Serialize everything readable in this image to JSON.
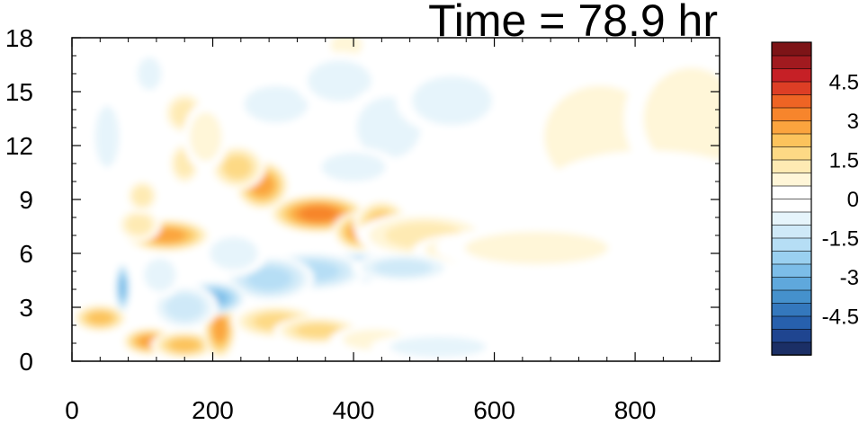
{
  "chart_data": {
    "type": "heatmap",
    "title": "Time = 78.9 hr",
    "xlabel": "",
    "ylabel": "",
    "xlim": [
      0,
      920
    ],
    "ylim": [
      0,
      18
    ],
    "x_ticks": [
      0,
      200,
      400,
      600,
      800
    ],
    "x_tick_labels": [
      "0",
      "200",
      "400",
      "600",
      "800"
    ],
    "y_ticks": [
      0,
      3,
      6,
      9,
      12,
      15,
      18
    ],
    "y_tick_labels": [
      "0",
      "3",
      "6",
      "9",
      "12",
      "15",
      "18"
    ],
    "colorbar": {
      "min": -6,
      "max": 6,
      "step": 0.5,
      "levels": [
        -5.5,
        -5,
        -4.5,
        -4,
        -3.5,
        -3,
        -2.5,
        -2,
        -1.5,
        -1,
        -0.5,
        0,
        0.5,
        1,
        1.5,
        2,
        2.5,
        3,
        3.5,
        4,
        4.5,
        5,
        5.5
      ],
      "labeled_values": [
        4.5,
        3,
        1.5,
        0,
        -1.5,
        -3,
        -4.5
      ],
      "labels": [
        "4.5",
        "3",
        "1.5",
        "0",
        "-1.5",
        "-3",
        "-4.5"
      ],
      "colors": [
        "#1b2f66",
        "#1f4590",
        "#2760ad",
        "#3478bd",
        "#4591cc",
        "#5fa8dc",
        "#7cbde8",
        "#9ad0f0",
        "#b6def5",
        "#cfe9f8",
        "#e6f4fb",
        "#ffffff",
        "#ffffff",
        "#fff6d8",
        "#feeab3",
        "#fdd985",
        "#fcc35c",
        "#fba43e",
        "#f7852c",
        "#ee6424",
        "#dd3e25",
        "#c62026",
        "#a11a1f",
        "#7d1417"
      ]
    },
    "features": [
      {
        "x": 350,
        "y": 8.2,
        "value": 3.5,
        "sx": 45,
        "sy": 0.7
      },
      {
        "x": 410,
        "y": 7.2,
        "value": 3.0,
        "sx": 25,
        "sy": 0.7
      },
      {
        "x": 440,
        "y": 7.6,
        "value": 2.2,
        "sx": 25,
        "sy": 0.9
      },
      {
        "x": 270,
        "y": 9.8,
        "value": 2.8,
        "sx": 25,
        "sy": 0.9
      },
      {
        "x": 235,
        "y": 10.8,
        "value": 2.0,
        "sx": 25,
        "sy": 0.8
      },
      {
        "x": 135,
        "y": 7.0,
        "value": 2.6,
        "sx": 40,
        "sy": 0.6
      },
      {
        "x": 95,
        "y": 7.6,
        "value": 1.4,
        "sx": 20,
        "sy": 0.6
      },
      {
        "x": 500,
        "y": 7.0,
        "value": 1.3,
        "sx": 60,
        "sy": 0.8
      },
      {
        "x": 580,
        "y": 6.2,
        "value": 1.1,
        "sx": 60,
        "sy": 0.6
      },
      {
        "x": 660,
        "y": 6.3,
        "value": 0.6,
        "sx": 90,
        "sy": 0.8
      },
      {
        "x": 110,
        "y": 1.1,
        "value": 2.8,
        "sx": 25,
        "sy": 0.5
      },
      {
        "x": 160,
        "y": 0.9,
        "value": 2.4,
        "sx": 30,
        "sy": 0.5
      },
      {
        "x": 40,
        "y": 2.4,
        "value": 2.2,
        "sx": 25,
        "sy": 0.5
      },
      {
        "x": 210,
        "y": 1.8,
        "value": 2.6,
        "sx": 15,
        "sy": 1.1
      },
      {
        "x": 290,
        "y": 2.2,
        "value": 1.6,
        "sx": 40,
        "sy": 0.6
      },
      {
        "x": 350,
        "y": 1.7,
        "value": 1.7,
        "sx": 40,
        "sy": 0.5
      },
      {
        "x": 430,
        "y": 1.2,
        "value": 1.0,
        "sx": 40,
        "sy": 0.5
      },
      {
        "x": 160,
        "y": 13.8,
        "value": 1.4,
        "sx": 20,
        "sy": 0.8
      },
      {
        "x": 160,
        "y": 11.0,
        "value": 1.5,
        "sx": 15,
        "sy": 0.8
      },
      {
        "x": 100,
        "y": 9.2,
        "value": 1.3,
        "sx": 15,
        "sy": 0.6
      },
      {
        "x": 190,
        "y": 12.5,
        "value": 0.9,
        "sx": 20,
        "sy": 1.2
      },
      {
        "x": 390,
        "y": 17.6,
        "value": 1.0,
        "sx": 20,
        "sy": 0.6
      },
      {
        "x": 750,
        "y": 12.5,
        "value": 0.9,
        "sx": 70,
        "sy": 2.5
      },
      {
        "x": 880,
        "y": 13.5,
        "value": 0.7,
        "sx": 60,
        "sy": 2.5
      },
      {
        "x": 820,
        "y": 9.8,
        "value": 0.5,
        "sx": 90,
        "sy": 1.2
      },
      {
        "x": 400,
        "y": 5.2,
        "value": -2.9,
        "sx": 40,
        "sy": 0.55
      },
      {
        "x": 340,
        "y": 5.0,
        "value": -1.9,
        "sx": 50,
        "sy": 0.7
      },
      {
        "x": 470,
        "y": 5.2,
        "value": -1.5,
        "sx": 45,
        "sy": 0.5
      },
      {
        "x": 280,
        "y": 4.6,
        "value": -1.7,
        "sx": 40,
        "sy": 0.8
      },
      {
        "x": 200,
        "y": 3.5,
        "value": -3.0,
        "sx": 30,
        "sy": 0.6
      },
      {
        "x": 160,
        "y": 3.0,
        "value": -1.5,
        "sx": 30,
        "sy": 0.8
      },
      {
        "x": 72,
        "y": 4.1,
        "value": -2.6,
        "sx": 7,
        "sy": 0.9
      },
      {
        "x": 125,
        "y": 4.8,
        "value": -1.0,
        "sx": 20,
        "sy": 0.8
      },
      {
        "x": 230,
        "y": 6.0,
        "value": -1.0,
        "sx": 30,
        "sy": 0.8
      },
      {
        "x": 290,
        "y": 14.3,
        "value": -1.0,
        "sx": 40,
        "sy": 0.9
      },
      {
        "x": 380,
        "y": 15.6,
        "value": -1.0,
        "sx": 40,
        "sy": 1.0
      },
      {
        "x": 450,
        "y": 13.0,
        "value": -0.9,
        "sx": 40,
        "sy": 1.5
      },
      {
        "x": 540,
        "y": 14.5,
        "value": -0.7,
        "sx": 50,
        "sy": 1.2
      },
      {
        "x": 400,
        "y": 10.8,
        "value": -0.7,
        "sx": 40,
        "sy": 0.7
      },
      {
        "x": 520,
        "y": 0.8,
        "value": -0.8,
        "sx": 60,
        "sy": 0.5
      },
      {
        "x": 760,
        "y": 3.7,
        "value": -0.5,
        "sx": 110,
        "sy": 0.6
      },
      {
        "x": 110,
        "y": 16.0,
        "value": -0.8,
        "sx": 15,
        "sy": 0.8
      },
      {
        "x": 50,
        "y": 12.5,
        "value": -0.6,
        "sx": 15,
        "sy": 1.5
      }
    ]
  }
}
